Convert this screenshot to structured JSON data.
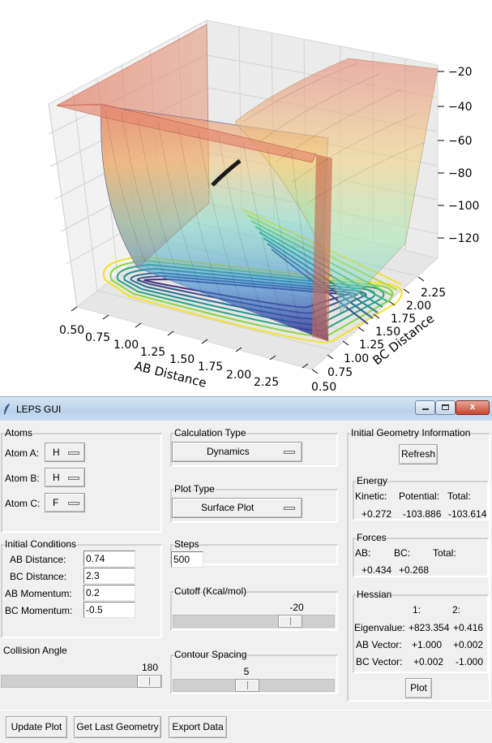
{
  "plot": {
    "ab_axis_label": "AB Distance",
    "bc_axis_label": "BC Distance",
    "ab_ticks": [
      "0.50",
      "0.75",
      "1.00",
      "1.25",
      "1.50",
      "1.75",
      "2.00",
      "2.25"
    ],
    "bc_ticks": [
      "0.50",
      "0.75",
      "1.00",
      "1.25",
      "1.50",
      "1.75",
      "2.00",
      "2.25"
    ],
    "z_ticks": [
      "−20",
      "−40",
      "−60",
      "−80",
      "−100",
      "−120"
    ]
  },
  "window": {
    "title": "LEPS GUI",
    "icon": "feather-icon",
    "minimize": "minimize-icon",
    "maximize": "maximize-icon",
    "close_glyph": "x"
  },
  "atoms": {
    "legend": "Atoms",
    "a_label": "Atom A:",
    "a_value": "H",
    "b_label": "Atom B:",
    "b_value": "H",
    "c_label": "Atom C:",
    "c_value": "F"
  },
  "initial_conditions": {
    "legend": "Initial Conditions",
    "ab_distance_label": "AB Distance:",
    "ab_distance": "0.74",
    "bc_distance_label": "BC Distance:",
    "bc_distance": "2.3",
    "ab_momentum_label": "AB Momentum:",
    "ab_momentum": "0.2",
    "bc_momentum_label": "BC Momentum:",
    "bc_momentum": "-0.5"
  },
  "collision_angle": {
    "legend": "Collision Angle",
    "value": "180",
    "fraction": 1.0
  },
  "calculation_type": {
    "legend": "Calculation Type",
    "value": "Dynamics"
  },
  "plot_type": {
    "legend": "Plot Type",
    "value": "Surface Plot"
  },
  "steps": {
    "legend": "Steps",
    "value": "500"
  },
  "cutoff": {
    "legend": "Cutoff (Kcal/mol)",
    "value": "-20",
    "fraction": 0.77
  },
  "contour_spacing": {
    "legend": "Contour Spacing",
    "value": "5",
    "fraction": 0.45
  },
  "geometry_info": {
    "legend": "Initial Geometry Information",
    "refresh": "Refresh",
    "energy_legend": "Energy",
    "kinetic_label": "Kinetic:",
    "potential_label": "Potential:",
    "total_label": "Total:",
    "kinetic": "+0.272",
    "potential": "-103.886",
    "total": "-103.614",
    "forces_legend": "Forces",
    "f_ab_label": "AB:",
    "f_bc_label": "BC:",
    "f_total_label": "Total:",
    "f_ab": "+0.434",
    "f_bc": "+0.268",
    "hessian_legend": "Hessian",
    "col1": "1:",
    "col2": "2:",
    "eigen_label": "Eigenvalue:",
    "eigen1": "+823.354",
    "eigen2": "+0.416",
    "abvec_label": "AB Vector:",
    "abvec1": "+1.000",
    "abvec2": "+0.002",
    "bcvec_label": "BC Vector:",
    "bcvec1": "+0.002",
    "bcvec2": "-1.000",
    "plot_button": "Plot"
  },
  "bottom_buttons": {
    "update_plot": "Update Plot",
    "get_last_geometry": "Get Last Geometry",
    "export_data": "Export Data"
  }
}
